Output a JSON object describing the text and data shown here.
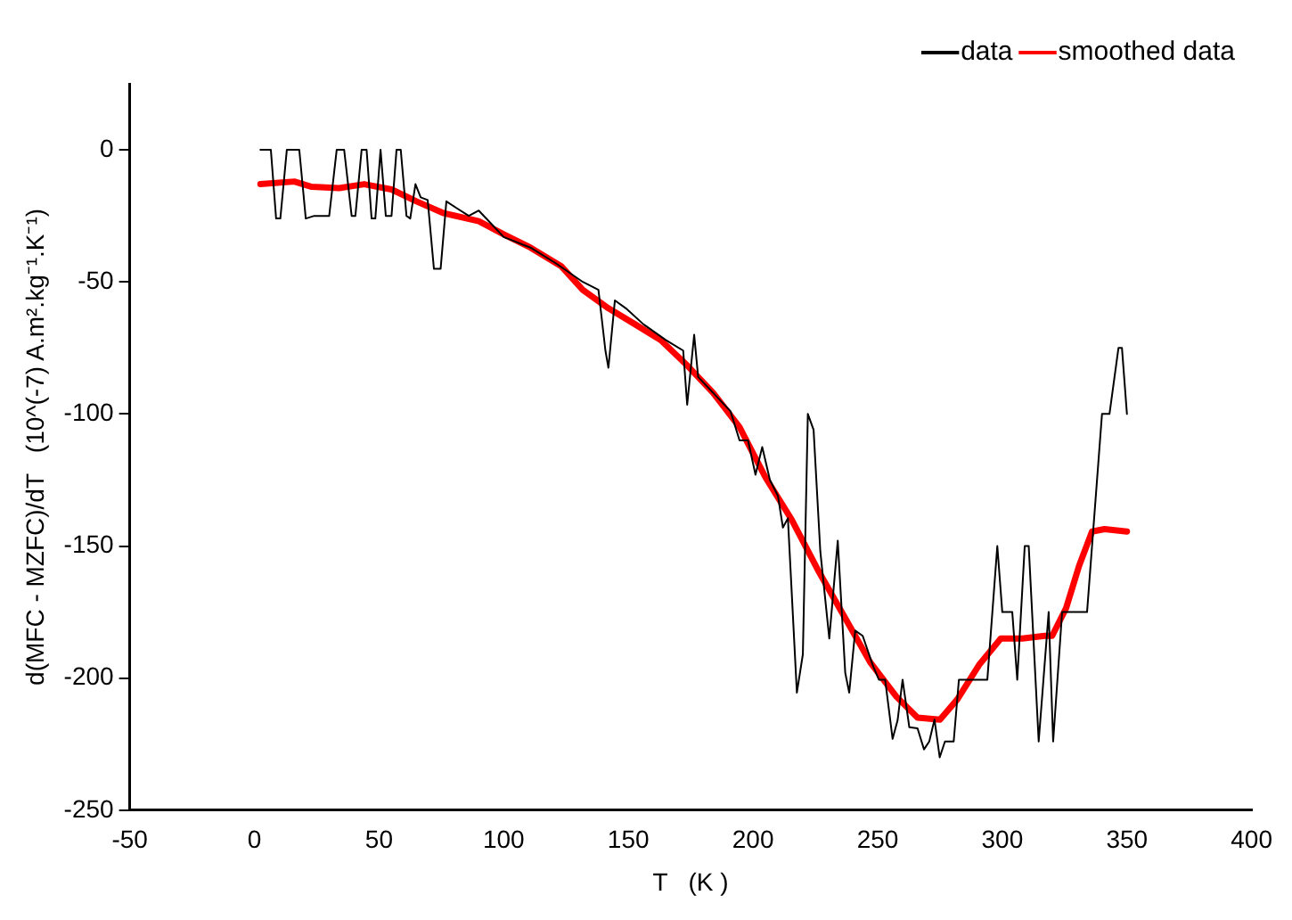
{
  "chart_data": {
    "type": "line",
    "xlabel": "T   (K )",
    "ylabel": "d(MFC - MZFC)/dT   (10^(-7) A.m².kg⁻¹.K⁻¹)",
    "xlim": [
      -50,
      400
    ],
    "xticks": [
      -50,
      0,
      50,
      100,
      150,
      200,
      250,
      300,
      350,
      400
    ],
    "ylim": [
      -250,
      25
    ],
    "yticks": [
      -250,
      -200,
      -150,
      -100,
      -50,
      0
    ],
    "grid": false,
    "legend": "top right",
    "marker": "none",
    "line_style": "solid",
    "series": [
      {
        "name": "data",
        "color": "#000000",
        "x": [
          2.4,
          6.6,
          8.7,
          10.4,
          13,
          18,
          20.6,
          24,
          30,
          33,
          36,
          39,
          40.5,
          43,
          45,
          47,
          48.5,
          50.6,
          52.7,
          55,
          57,
          58.7,
          61,
          62.5,
          64.6,
          66.7,
          69.5,
          72,
          74.7,
          77,
          81,
          86,
          90,
          95,
          100,
          110.7,
          121,
          131.7,
          138,
          140.8,
          142,
          144.6,
          149,
          156,
          165,
          172,
          173.6,
          176.4,
          178,
          184,
          191,
          194.6,
          198,
          201,
          203.7,
          206.8,
          210,
          212,
          214,
          217.6,
          220,
          222,
          224.3,
          227,
          230.6,
          234,
          237,
          238.6,
          241,
          244,
          248,
          250.5,
          253,
          256,
          258,
          260,
          262.7,
          266,
          268.6,
          270.7,
          272.8,
          274.9,
          277,
          280.5,
          282.6,
          294,
          298,
          300,
          304,
          306,
          309,
          310.6,
          314.6,
          318.6,
          320.4,
          324,
          334,
          340,
          343,
          346.6,
          348,
          350
        ],
        "values": [
          0,
          0,
          -26,
          -26,
          0,
          0,
          -26,
          -25,
          -25,
          0,
          0,
          -25,
          -25,
          0,
          0,
          -26,
          -26,
          0,
          -25,
          -25,
          0,
          0,
          -25,
          -26,
          -13,
          -18,
          -19,
          -45,
          -45,
          -19.5,
          -22,
          -25,
          -23,
          -28,
          -33,
          -37,
          -43,
          -50,
          -53,
          -76,
          -82.5,
          -57,
          -60,
          -66,
          -72,
          -76,
          -96.5,
          -70,
          -86,
          -92,
          -99,
          -110,
          -110,
          -123,
          -112.5,
          -125,
          -131,
          -143,
          -139.5,
          -205.5,
          -191,
          -100,
          -106,
          -152,
          -185,
          -148,
          -198,
          -205.5,
          -182,
          -184,
          -195,
          -200.6,
          -200.6,
          -223,
          -216,
          -200.6,
          -218.6,
          -219,
          -227,
          -224,
          -215.7,
          -230,
          -224,
          -224,
          -200.6,
          -200.6,
          -150,
          -175,
          -175,
          -200.6,
          -150,
          -150,
          -224,
          -175,
          -224,
          -175,
          -175,
          -100,
          -100,
          -75,
          -75,
          -100
        ]
      },
      {
        "name": "smoothed data",
        "color": "#ff0000",
        "x": [
          2.4,
          16,
          23,
          34,
          44,
          55,
          65,
          76,
          90,
          100,
          110.7,
          123,
          131.7,
          142,
          152.6,
          163,
          174,
          184,
          194.6,
          205,
          215.5,
          226,
          236.5,
          247,
          257.5,
          266,
          275,
          282,
          290.7,
          299.4,
          308,
          317,
          320,
          325.6,
          330.8,
          336,
          341,
          350
        ],
        "values": [
          -13,
          -12,
          -14,
          -14.5,
          -13,
          -15,
          -19.5,
          -24,
          -27,
          -32,
          -37,
          -44,
          -53,
          -60,
          -66,
          -72,
          -82,
          -92,
          -105,
          -124,
          -140,
          -159,
          -176.5,
          -194,
          -207,
          -215,
          -215.7,
          -208,
          -195,
          -185,
          -185,
          -184,
          -184,
          -173.5,
          -157.5,
          -144.5,
          -143.6,
          -144.5
        ]
      }
    ]
  }
}
